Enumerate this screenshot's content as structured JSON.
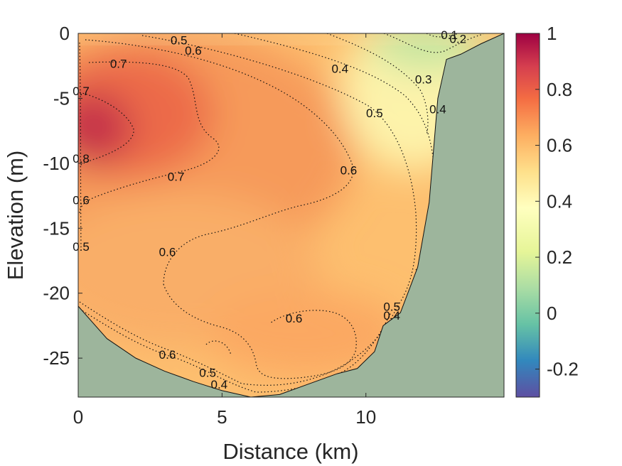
{
  "chart_data": {
    "type": "heatmap",
    "title": "",
    "xlabel": "Distance (km)",
    "ylabel": "Elevation (m)",
    "xlim": [
      0,
      14.8
    ],
    "ylim": [
      -28,
      0
    ],
    "xticks": [
      0,
      5,
      10
    ],
    "xtick_labels": [
      "0",
      "5",
      "10"
    ],
    "yticks": [
      0,
      -5,
      -10,
      -15,
      -20,
      -25
    ],
    "ytick_labels": [
      "0",
      "-5",
      "-10",
      "-15",
      "-20",
      "-25"
    ],
    "colorbar": {
      "range": [
        -0.3,
        1
      ],
      "ticks": [
        1,
        0.8,
        0.6,
        0.4,
        0.2,
        0,
        -0.2
      ],
      "tick_labels": [
        "1",
        "0.8",
        "0.6",
        "0.4",
        "0.2",
        "0",
        "-0.2"
      ],
      "colormap": "Spectral (reversed)"
    },
    "land_color": "#9db59c",
    "contour_style": "dotted black",
    "bottom_profile": [
      [
        0,
        -21
      ],
      [
        1,
        -23.5
      ],
      [
        2,
        -25
      ],
      [
        3,
        -26
      ],
      [
        4,
        -26.8
      ],
      [
        5,
        -27.5
      ],
      [
        6,
        -28
      ],
      [
        7,
        -27.8
      ],
      [
        8,
        -27
      ],
      [
        9,
        -26.2
      ],
      [
        9.7,
        -25.8
      ],
      [
        10.3,
        -24.5
      ],
      [
        10.6,
        -22.5
      ],
      [
        11.2,
        -21.5
      ],
      [
        11.8,
        -18
      ],
      [
        12.2,
        -13
      ],
      [
        12.5,
        -5
      ],
      [
        12.8,
        -2
      ],
      [
        13.3,
        -1.6
      ],
      [
        14,
        -0.8
      ],
      [
        14.8,
        0
      ]
    ],
    "contour_labels": [
      {
        "text": "0.1",
        "x": 12.9,
        "y": -0.2
      },
      {
        "text": "0.2",
        "x": 13.2,
        "y": -0.5
      },
      {
        "text": "0.3",
        "x": 12.0,
        "y": -3.6
      },
      {
        "text": "0.4",
        "x": 9.1,
        "y": -2.8
      },
      {
        "text": "0.4",
        "x": 12.5,
        "y": -5.9
      },
      {
        "text": "0.4",
        "x": 10.9,
        "y": -21.8
      },
      {
        "text": "0.4",
        "x": 4.9,
        "y": -27.1
      },
      {
        "text": "0.5",
        "x": 3.5,
        "y": -0.6
      },
      {
        "text": "0.5",
        "x": 10.3,
        "y": -6.2
      },
      {
        "text": "0.5",
        "x": 10.9,
        "y": -21.1
      },
      {
        "text": "0.5",
        "x": 4.5,
        "y": -26.2
      },
      {
        "text": "0.5",
        "x": 0.1,
        "y": -16.5
      },
      {
        "text": "0.6",
        "x": 4.0,
        "y": -1.4
      },
      {
        "text": "0.6",
        "x": 9.4,
        "y": -10.6
      },
      {
        "text": "0.6",
        "x": 3.1,
        "y": -16.9
      },
      {
        "text": "0.6",
        "x": 7.5,
        "y": -22.0
      },
      {
        "text": "0.6",
        "x": 3.1,
        "y": -24.8
      },
      {
        "text": "0.6",
        "x": 0.1,
        "y": -12.9
      },
      {
        "text": "0.7",
        "x": 1.4,
        "y": -2.4
      },
      {
        "text": "0.7",
        "x": 3.4,
        "y": -11.1
      },
      {
        "text": "0.7",
        "x": 0.1,
        "y": -4.5
      },
      {
        "text": "0.8",
        "x": 0.1,
        "y": -9.7
      }
    ]
  }
}
